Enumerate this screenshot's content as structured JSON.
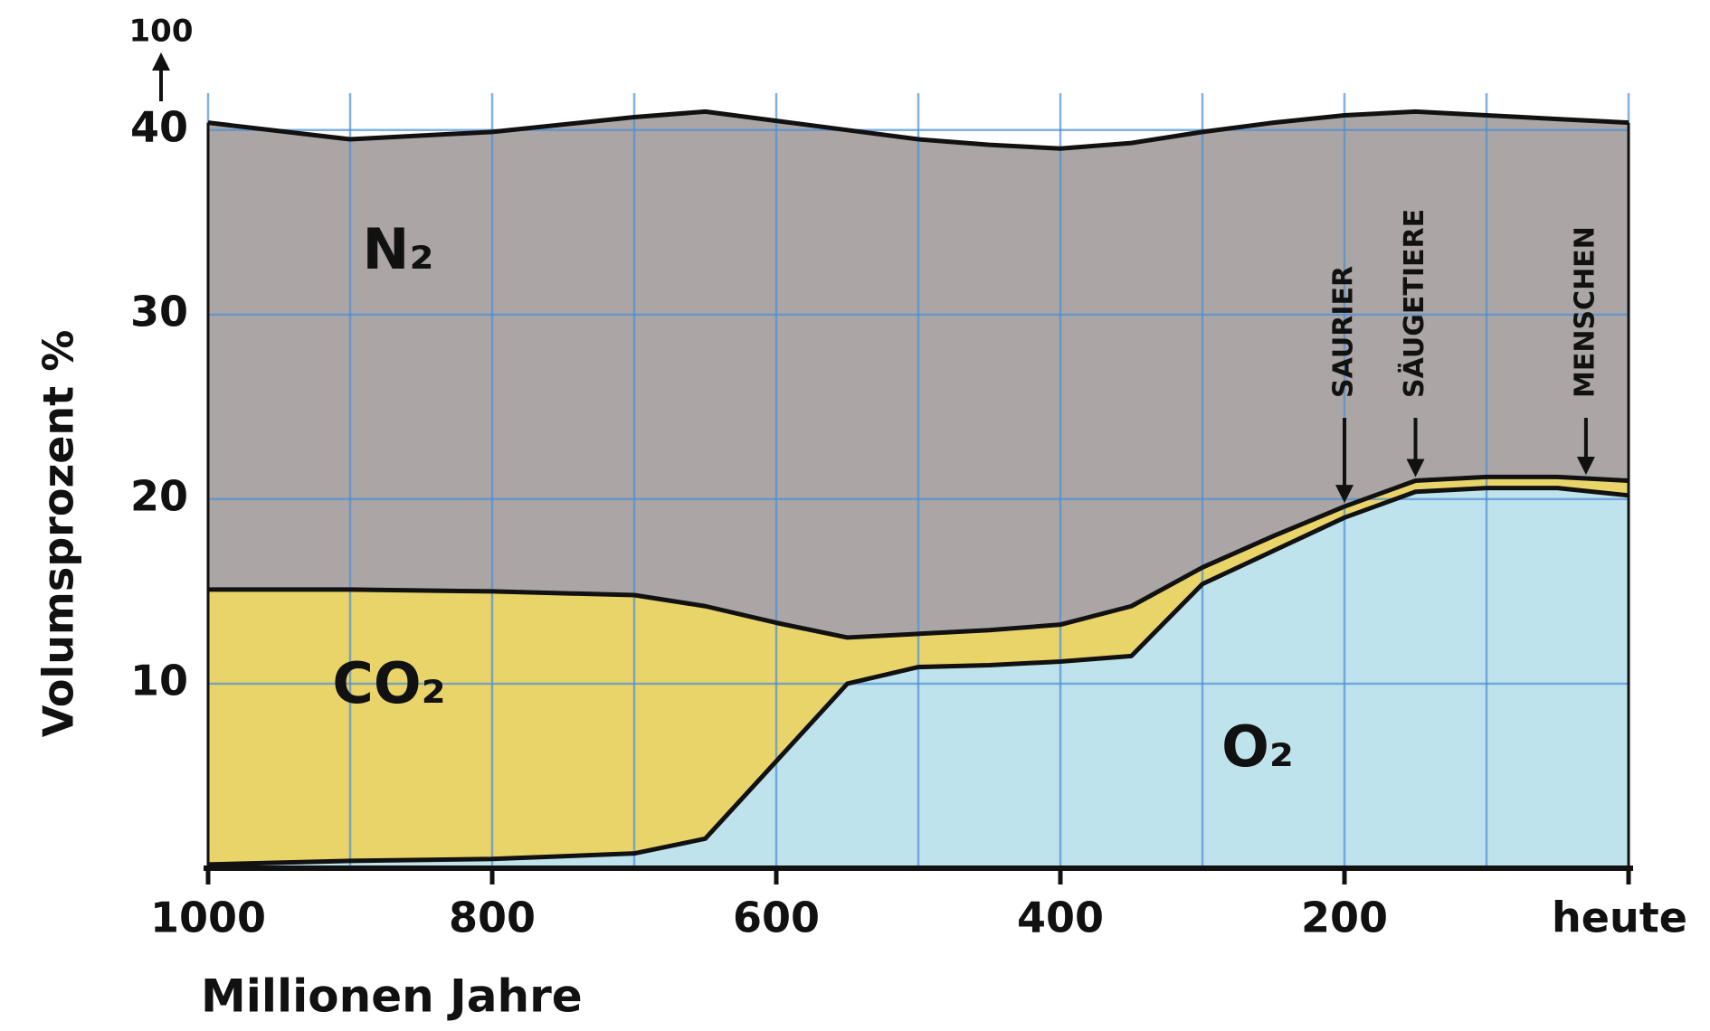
{
  "chart_data": {
    "type": "stacked_area",
    "y_label": "Volumsprozent %",
    "x_label": "Millionen Jahre",
    "y_top_label": "100",
    "x": [
      1000,
      900,
      800,
      700,
      650,
      600,
      550,
      500,
      450,
      400,
      350,
      300,
      250,
      200,
      150,
      100,
      50,
      0
    ],
    "series": [
      {
        "name": "O₂",
        "color": "#bfe3ec",
        "values": [
          0.2,
          0.4,
          0.5,
          0.8,
          1.6,
          5.8,
          10.0,
          10.9,
          11.0,
          11.2,
          11.5,
          15.4,
          17.2,
          19.0,
          20.4,
          20.6,
          20.6,
          20.2
        ]
      },
      {
        "name": "CO₂",
        "color": "#e9d46a",
        "values": [
          14.9,
          14.7,
          14.5,
          14.0,
          12.6,
          7.5,
          2.5,
          1.8,
          1.9,
          2.0,
          2.7,
          0.9,
          0.8,
          0.6,
          0.6,
          0.6,
          0.6,
          0.8
        ]
      },
      {
        "name": "N₂",
        "color": "#aba6a5",
        "values": [
          25.3,
          24.4,
          24.9,
          25.9,
          26.8,
          27.2,
          27.5,
          26.8,
          26.3,
          25.8,
          25.1,
          23.6,
          22.4,
          21.2,
          20.0,
          19.6,
          19.4,
          19.4
        ]
      }
    ],
    "xlim": [
      1000,
      0
    ],
    "ylim": [
      0,
      42
    ],
    "xticks": [
      1000,
      800,
      600,
      400,
      200,
      {
        "value": 0,
        "label": "heute"
      }
    ],
    "xgrid": [
      900,
      700,
      500,
      300,
      100
    ],
    "yticks": [
      10,
      20,
      30,
      40
    ],
    "grid": true,
    "grid_color": "#4f8fd6",
    "annotations": [
      {
        "text": "SAURIER",
        "x": 200
      },
      {
        "text": "SÄUGETIERE",
        "x": 150
      },
      {
        "text": "MENSCHEN",
        "x": 30
      }
    ]
  }
}
